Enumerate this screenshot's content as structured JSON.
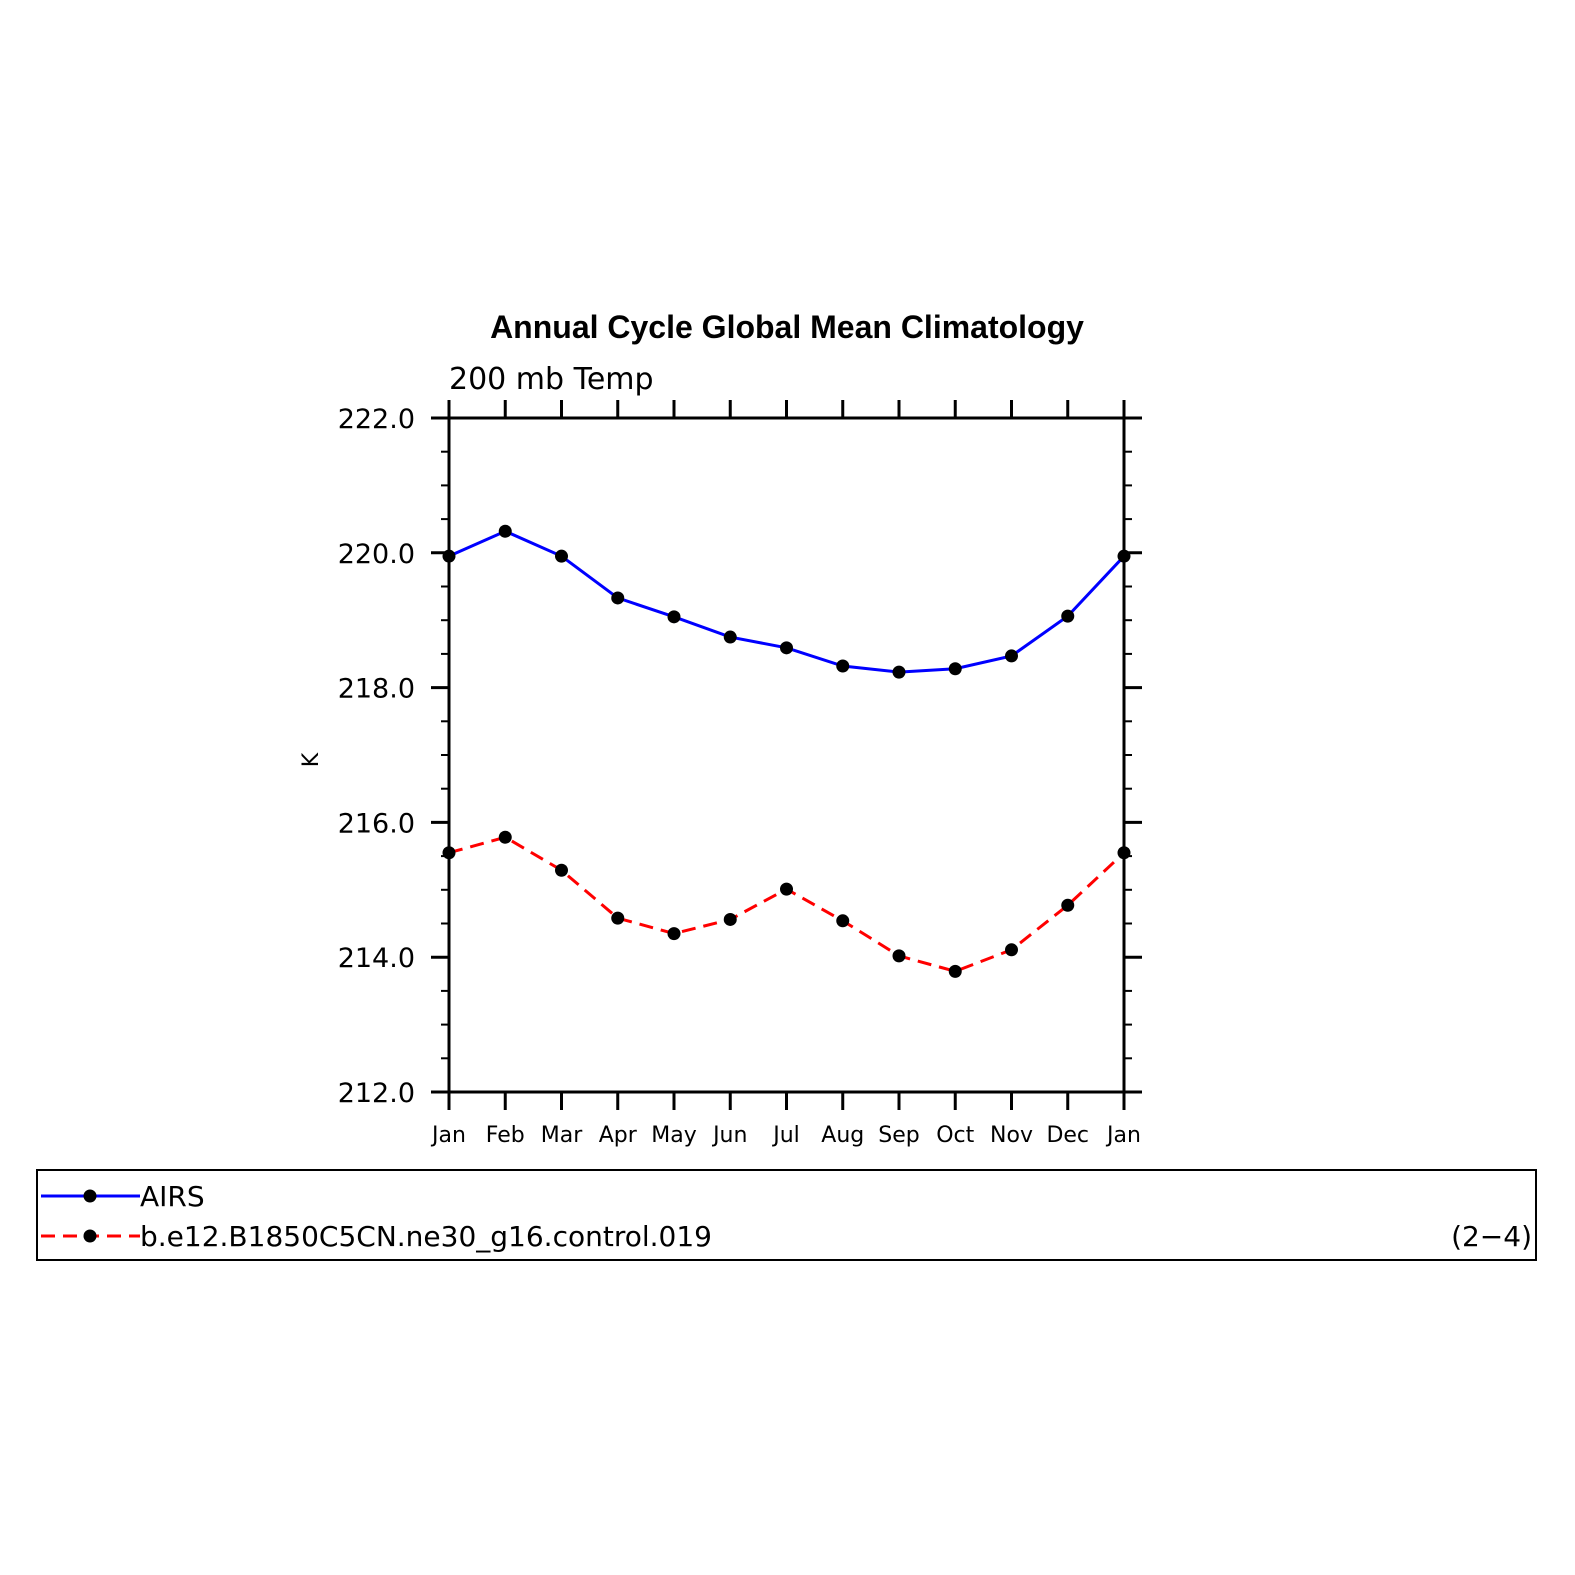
{
  "chart_data": {
    "type": "line",
    "title": "Annual Cycle Global Mean Climatology",
    "subtitle": "200 mb Temp",
    "xlabel": "",
    "ylabel": "K",
    "ylim": [
      212.0,
      222.0
    ],
    "y_ticks": [
      "212.0",
      "214.0",
      "216.0",
      "218.0",
      "220.0",
      "222.0"
    ],
    "categories": [
      "Jan",
      "Feb",
      "Mar",
      "Apr",
      "May",
      "Jun",
      "Jul",
      "Aug",
      "Sep",
      "Oct",
      "Nov",
      "Dec",
      "Jan"
    ],
    "series": [
      {
        "name": "AIRS",
        "color": "#0000ff",
        "dash": "solid",
        "values": [
          219.95,
          220.32,
          219.95,
          219.33,
          219.05,
          218.75,
          218.59,
          218.32,
          218.23,
          218.28,
          218.47,
          219.06,
          219.95
        ]
      },
      {
        "name": "b.e12.B1850C5CN.ne30_g16.control.019",
        "color": "#ff0000",
        "dash": "dashed",
        "values": [
          215.55,
          215.78,
          215.29,
          214.58,
          214.35,
          214.56,
          215.01,
          214.54,
          214.02,
          213.79,
          214.11,
          214.77,
          215.55
        ]
      }
    ],
    "legend_position": "bottom",
    "legend_note": "(2−4)"
  }
}
